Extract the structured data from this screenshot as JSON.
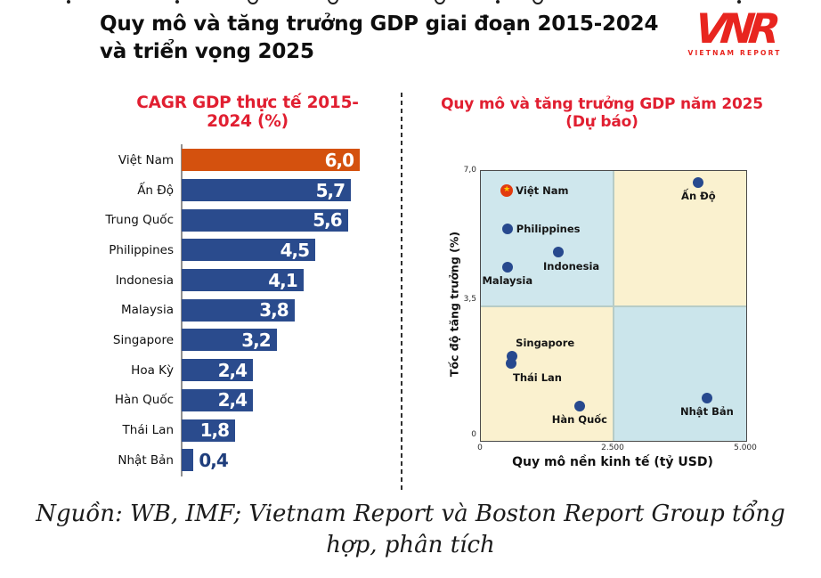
{
  "header": {
    "title_line1": "Quy mô và tăng trưởng GDP giai đoạn 2015-2024",
    "title_line2": "và triển vọng 2025",
    "logo": {
      "text": "VNR",
      "subtext": "VIETNAM REPORT",
      "color": "#E8251F"
    }
  },
  "panels": {
    "left_title": "CAGR GDP thực tế 2015-2024 (%)",
    "right_title": "Quy mô và tăng trưởng GDP năm 2025 (Dự báo)",
    "title_color": "#E11F31"
  },
  "chart_data": [
    {
      "type": "bar",
      "orientation": "horizontal",
      "title": "CAGR GDP thực tế 2015-2024 (%)",
      "categories": [
        "Việt Nam",
        "Ấn Độ",
        "Trung Quốc",
        "Philippines",
        "Indonesia",
        "Malaysia",
        "Singapore",
        "Hoa Kỳ",
        "Hàn Quốc",
        "Thái Lan",
        "Nhật Bản"
      ],
      "values": [
        6.0,
        5.7,
        5.6,
        4.5,
        4.1,
        3.8,
        3.2,
        2.4,
        2.4,
        1.8,
        0.4
      ],
      "value_labels": [
        "6,0",
        "5,7",
        "5,6",
        "4,5",
        "4,1",
        "3,8",
        "3,2",
        "2,4",
        "2,4",
        "1,8",
        "0,4"
      ],
      "xlim": [
        0,
        6.0
      ],
      "highlight_index": 0,
      "highlight_color": "#D4510E",
      "bar_color": "#2A4B8D",
      "outside_value_color": "#1F3E7C"
    },
    {
      "type": "scatter",
      "title": "Quy mô và tăng trưởng GDP năm 2025 (Dự báo)",
      "xlabel": "Quy mô nền kinh tế (tỷ USD)",
      "ylabel": "Tốc độ tăng trưởng (%)",
      "xlim": [
        0,
        5000
      ],
      "ylim": [
        0,
        7.0
      ],
      "x_ticks": [
        "0",
        "2.500",
        "5.000"
      ],
      "y_ticks_top_to_bottom": [
        "7,0",
        "3,5",
        "0"
      ],
      "quadrant_colors": {
        "top_left": "#CFE7ED",
        "top_right": "#FAF1CF",
        "bottom_left": "#FAF1CF",
        "bottom_right": "#CBE5EB"
      },
      "dot_color": "#27498E",
      "vietnam_marker": {
        "fill": "#E23B0F",
        "star_color": "#FFCC00"
      },
      "points": [
        {
          "name": "Việt Nam",
          "x": 490,
          "y": 6.5,
          "marker": "vietnam-flag",
          "label_pos": "right"
        },
        {
          "name": "Ấn Độ",
          "x": 4100,
          "y": 6.7,
          "label_pos": "below"
        },
        {
          "name": "Philippines",
          "x": 500,
          "y": 5.5,
          "label_pos": "right"
        },
        {
          "name": "Indonesia",
          "x": 1460,
          "y": 4.9,
          "label_pos": "below-left"
        },
        {
          "name": "Malaysia",
          "x": 500,
          "y": 4.5,
          "label_pos": "below"
        },
        {
          "name": "Singapore",
          "x": 590,
          "y": 2.2,
          "label_pos": "above-right"
        },
        {
          "name": "Thái Lan",
          "x": 570,
          "y": 2.0,
          "label_pos": "below-right"
        },
        {
          "name": "Hàn Quốc",
          "x": 1860,
          "y": 0.9,
          "label_pos": "below"
        },
        {
          "name": "Nhật Bản",
          "x": 4260,
          "y": 1.1,
          "label_pos": "below"
        }
      ]
    }
  ],
  "source": {
    "lines": [
      "Nguồn: WB, IMF; Vietnam Report và Boston Report Group tổng",
      "hợp, phân tích"
    ]
  }
}
